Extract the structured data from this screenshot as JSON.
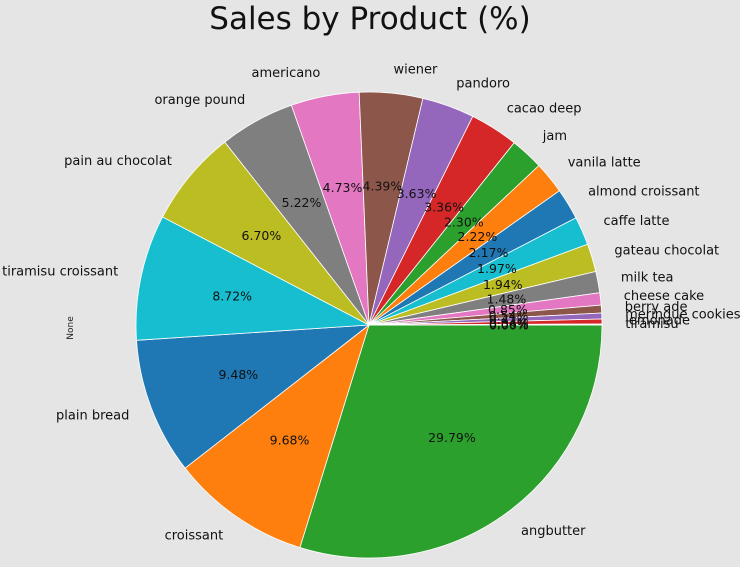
{
  "chart_data": {
    "type": "pie",
    "title": "Sales by Product (%)",
    "ylabel": "None",
    "slices": [
      {
        "label": "angbutter",
        "value": 29.79,
        "pct_text": "29.79%",
        "color": "#2ca02c"
      },
      {
        "label": "croissant",
        "value": 9.68,
        "pct_text": "9.68%",
        "color": "#ff7f0e"
      },
      {
        "label": "plain bread",
        "value": 9.48,
        "pct_text": "9.48%",
        "color": "#1f77b4"
      },
      {
        "label": "tiramisu croissant",
        "value": 8.72,
        "pct_text": "8.72%",
        "color": "#17becf"
      },
      {
        "label": "pain au chocolat",
        "value": 6.7,
        "pct_text": "6.70%",
        "color": "#bcbd22"
      },
      {
        "label": "orange pound",
        "value": 5.22,
        "pct_text": "5.22%",
        "color": "#7f7f7f"
      },
      {
        "label": "americano",
        "value": 4.73,
        "pct_text": "4.73%",
        "color": "#e377c2"
      },
      {
        "label": "wiener",
        "value": 4.39,
        "pct_text": "4.39%",
        "color": "#8c564b"
      },
      {
        "label": "pandoro",
        "value": 3.63,
        "pct_text": "3.63%",
        "color": "#9467bd"
      },
      {
        "label": "cacao deep",
        "value": 3.36,
        "pct_text": "3.36%",
        "color": "#d62728"
      },
      {
        "label": "jam",
        "value": 2.3,
        "pct_text": "2.30%",
        "color": "#2ca02c"
      },
      {
        "label": "vanila latte",
        "value": 2.22,
        "pct_text": "2.22%",
        "color": "#ff7f0e"
      },
      {
        "label": "almond croissant",
        "value": 2.17,
        "pct_text": "2.17%",
        "color": "#1f77b4"
      },
      {
        "label": "caffe latte",
        "value": 1.97,
        "pct_text": "1.97%",
        "color": "#17becf"
      },
      {
        "label": "gateau chocolat",
        "value": 1.94,
        "pct_text": "1.94%",
        "color": "#bcbd22"
      },
      {
        "label": "milk tea",
        "value": 1.48,
        "pct_text": "1.48%",
        "color": "#7f7f7f"
      },
      {
        "label": "cheese cake",
        "value": 0.85,
        "pct_text": "0.85%",
        "color": "#e377c2"
      },
      {
        "label": "berry ade",
        "value": 0.54,
        "pct_text": "0.54%",
        "color": "#8c564b"
      },
      {
        "label": "meringue cookies",
        "value": 0.41,
        "pct_text": "0.41%",
        "color": "#9467bd"
      },
      {
        "label": "lemonade",
        "value": 0.34,
        "pct_text": "0.34%",
        "color": "#d62728"
      },
      {
        "label": "tiramisu",
        "value": 0.06,
        "pct_text": "0.06%",
        "color": "#2ca02c"
      },
      {
        "label": "",
        "value": 0.01,
        "pct_text": "0.00%",
        "color": "#ff7f0e"
      }
    ]
  }
}
